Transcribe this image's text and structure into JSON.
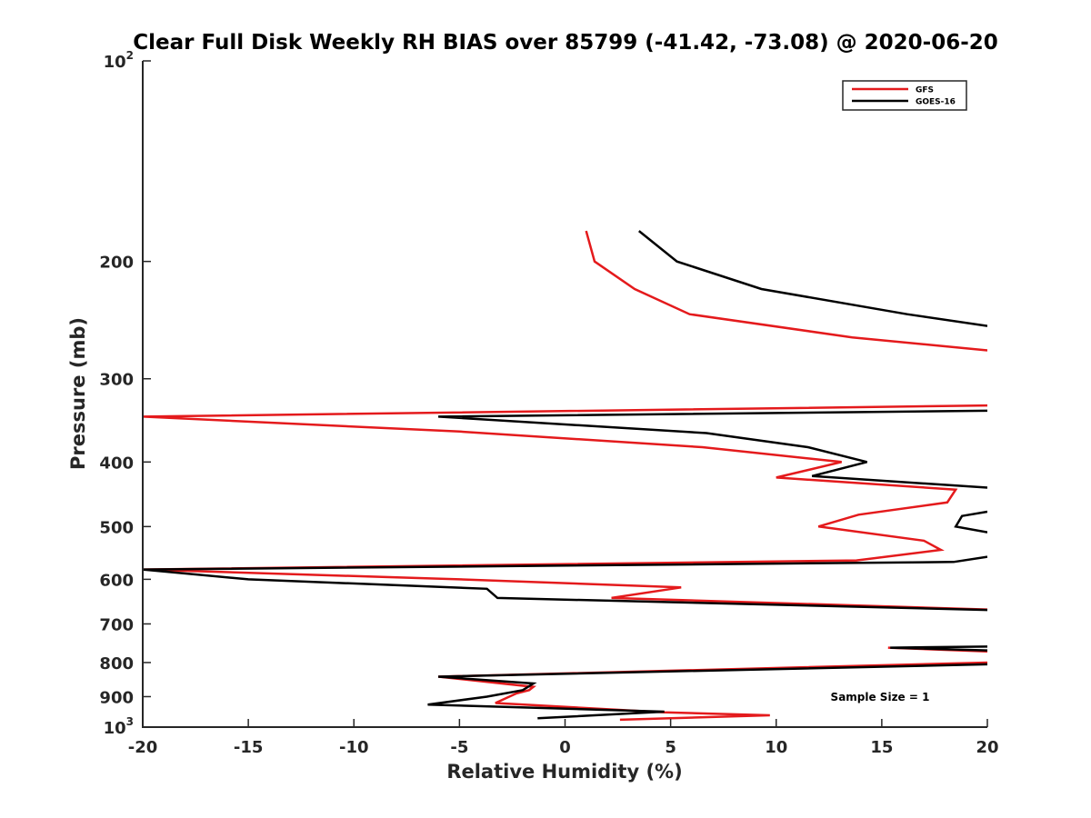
{
  "chart_data": {
    "type": "line",
    "title": "Clear Full Disk Weekly RH BIAS over 85799 (-41.42, -73.08) @ 2020-06-20",
    "xlabel": "Relative Humidity (%)",
    "ylabel": "Pressure (mb)",
    "xlim": [
      -20,
      20
    ],
    "ylim": [
      100,
      1000
    ],
    "y_scale": "log",
    "y_reversed": true,
    "grid": false,
    "x_ticks": [
      {
        "value": -20,
        "label": "-20"
      },
      {
        "value": -15,
        "label": "-15"
      },
      {
        "value": -10,
        "label": "-10"
      },
      {
        "value": -5,
        "label": "-5"
      },
      {
        "value": 0,
        "label": "0"
      },
      {
        "value": 5,
        "label": "5"
      },
      {
        "value": 10,
        "label": "10"
      },
      {
        "value": 15,
        "label": "15"
      },
      {
        "value": 20,
        "label": "20"
      }
    ],
    "y_ticks": [
      {
        "value": 100,
        "base": "10",
        "exp": "2"
      },
      {
        "value": 200,
        "base": "200",
        "exp": ""
      },
      {
        "value": 300,
        "base": "300",
        "exp": ""
      },
      {
        "value": 400,
        "base": "400",
        "exp": ""
      },
      {
        "value": 500,
        "base": "500",
        "exp": ""
      },
      {
        "value": 600,
        "base": "600",
        "exp": ""
      },
      {
        "value": 700,
        "base": "700",
        "exp": ""
      },
      {
        "value": 800,
        "base": "800",
        "exp": ""
      },
      {
        "value": 900,
        "base": "900",
        "exp": ""
      },
      {
        "value": 1000,
        "base": "10",
        "exp": "3"
      }
    ],
    "legend": {
      "position": "top-right"
    },
    "annotation": "Sample Size = 1",
    "series": [
      {
        "name": "GFS",
        "color": "#e41a1c",
        "segments": [
          [
            [
              1.0,
              180
            ],
            [
              1.4,
              200
            ],
            [
              3.3,
              220
            ],
            [
              5.9,
              240
            ],
            [
              13.6,
              260
            ],
            [
              20,
              272
            ]
          ],
          [
            [
              20,
              329
            ],
            [
              -20,
              342
            ],
            [
              -5.0,
              360
            ],
            [
              6.5,
              380
            ],
            [
              13.1,
              400
            ],
            [
              10.0,
              422
            ],
            [
              18.5,
              440
            ],
            [
              18.1,
              460
            ],
            [
              13.9,
              480
            ],
            [
              12.0,
              500
            ],
            [
              17.0,
              525
            ],
            [
              17.8,
              542
            ],
            [
              13.8,
              562
            ],
            [
              -20,
              580
            ],
            [
              -5.0,
              600
            ],
            [
              5.5,
              617
            ],
            [
              2.2,
              640
            ],
            [
              20,
              666
            ]
          ],
          [
            [
              15.3,
              760
            ],
            [
              20,
              770
            ]
          ],
          [
            [
              20,
              800
            ],
            [
              -6.0,
              840
            ],
            [
              -1.5,
              870
            ],
            [
              -1.7,
              880
            ],
            [
              -2.3,
              890
            ],
            [
              -3.3,
              920
            ],
            [
              4.7,
              950
            ],
            [
              9.7,
              960
            ],
            [
              2.6,
              975
            ]
          ]
        ]
      },
      {
        "name": "GOES-16",
        "color": "#000000",
        "segments": [
          [
            [
              3.5,
              180
            ],
            [
              5.3,
              200
            ],
            [
              9.3,
              220
            ],
            [
              16.2,
              240
            ],
            [
              20,
              250
            ]
          ],
          [
            [
              20,
              335
            ],
            [
              -6.0,
              342
            ],
            [
              6.7,
              362
            ],
            [
              11.5,
              380
            ],
            [
              14.3,
              400
            ],
            [
              11.7,
              420
            ],
            [
              20,
              437
            ]
          ],
          [
            [
              20,
              475
            ],
            [
              18.8,
              482
            ],
            [
              18.5,
              500
            ],
            [
              20,
              510
            ]
          ],
          [
            [
              20,
              555
            ],
            [
              18.4,
              565
            ],
            [
              -20,
              580
            ],
            [
              -15.0,
              600
            ],
            [
              -3.7,
              620
            ],
            [
              -3.2,
              640
            ],
            [
              20,
              667
            ]
          ],
          [
            [
              20,
              757
            ],
            [
              15.4,
              760
            ],
            [
              20,
              767
            ]
          ],
          [
            [
              20,
              805
            ],
            [
              -6.0,
              840
            ],
            [
              -1.5,
              860
            ],
            [
              -2.0,
              880
            ],
            [
              -3.7,
              900
            ],
            [
              -6.5,
              925
            ],
            [
              4.7,
              948
            ],
            [
              -1.3,
              970
            ]
          ]
        ]
      }
    ]
  }
}
